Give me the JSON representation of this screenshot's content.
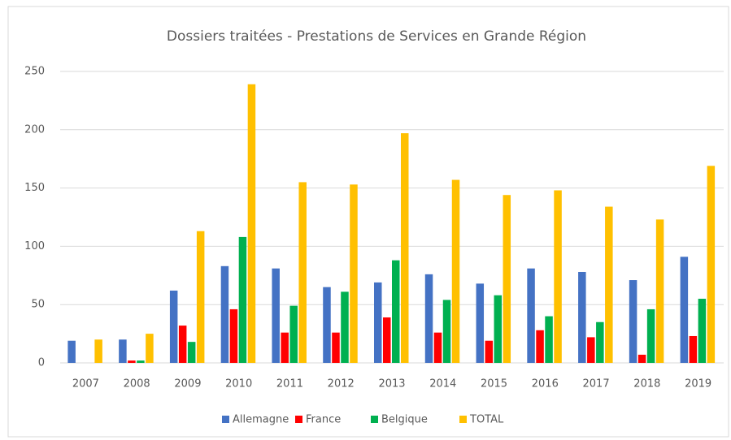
{
  "chart_data": {
    "type": "bar",
    "title": "Dossiers traitées - Prestations de Services en Grande Région",
    "categories": [
      "2007",
      "2008",
      "2009",
      "2010",
      "2011",
      "2012",
      "2013",
      "2014",
      "2015",
      "2016",
      "2017",
      "2018",
      "2019"
    ],
    "series": [
      {
        "name": "Allemagne",
        "color": "#4472c4",
        "values": [
          19,
          20,
          62,
          83,
          81,
          65,
          69,
          76,
          68,
          81,
          78,
          71,
          91
        ]
      },
      {
        "name": "France",
        "color": "#ff0000",
        "values": [
          0,
          2,
          32,
          46,
          26,
          26,
          39,
          26,
          19,
          28,
          22,
          7,
          23
        ]
      },
      {
        "name": "Belgique",
        "color": "#00b050",
        "values": [
          0,
          2,
          18,
          108,
          49,
          61,
          88,
          54,
          58,
          40,
          35,
          46,
          55
        ]
      },
      {
        "name": "TOTAL",
        "color": "#ffc000",
        "values": [
          20,
          25,
          113,
          239,
          155,
          153,
          197,
          157,
          144,
          148,
          134,
          123,
          169
        ]
      }
    ],
    "ylim": [
      0,
      250
    ],
    "yticks": [
      0,
      50,
      100,
      150,
      200,
      250
    ],
    "grid": true,
    "legend": "bottom"
  }
}
